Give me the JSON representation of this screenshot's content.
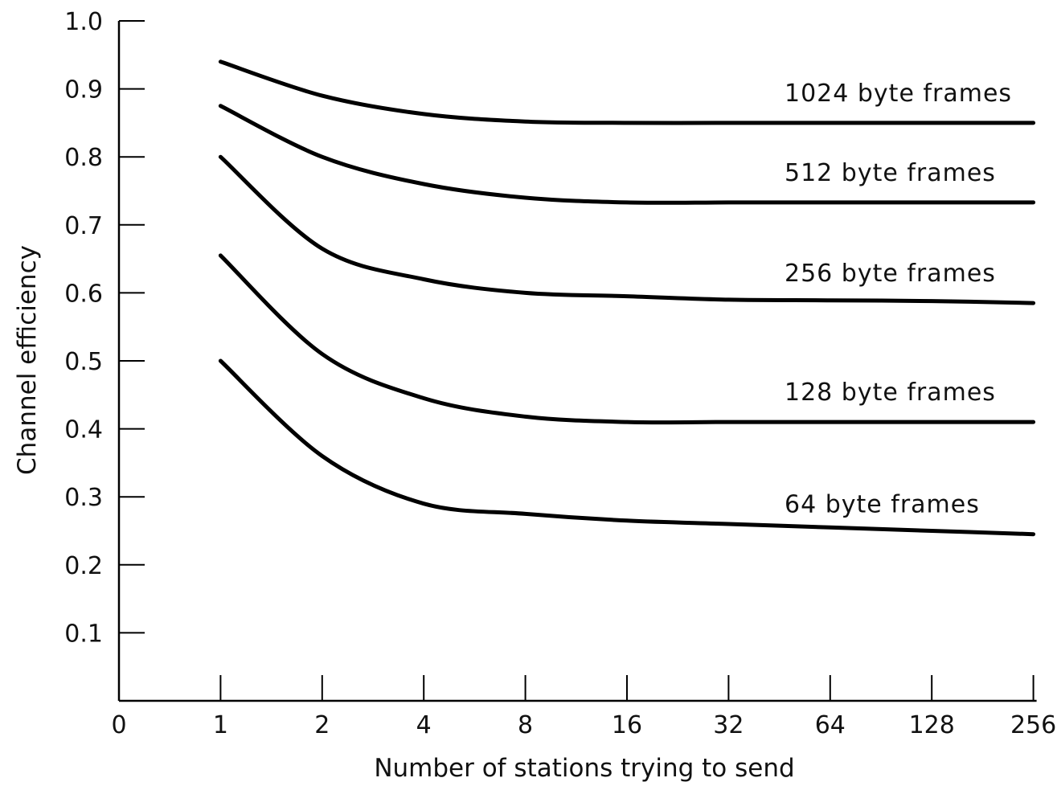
{
  "chart_data": {
    "type": "line",
    "title": "",
    "xlabel": "Number of stations trying to send",
    "ylabel": "Channel efficiency",
    "x_scale": "log2",
    "x_ticks": [
      "0",
      "1",
      "2",
      "4",
      "8",
      "16",
      "32",
      "64",
      "128",
      "256"
    ],
    "y_ticks": [
      "0.1",
      "0.2",
      "0.3",
      "0.4",
      "0.5",
      "0.6",
      "0.7",
      "0.8",
      "0.9",
      "1.0"
    ],
    "ylim": [
      0,
      1.0
    ],
    "grid": false,
    "legend": "inline labels at right end of each curve",
    "x": [
      1,
      2,
      4,
      8,
      16,
      32,
      64,
      128,
      256
    ],
    "series": [
      {
        "name": "1024 byte frames",
        "values": [
          0.94,
          0.89,
          0.863,
          0.852,
          0.85,
          0.85,
          0.85,
          0.85,
          0.85
        ]
      },
      {
        "name": "512 byte frames",
        "values": [
          0.875,
          0.8,
          0.76,
          0.74,
          0.733,
          0.733,
          0.733,
          0.733,
          0.733
        ]
      },
      {
        "name": "256 byte frames",
        "values": [
          0.8,
          0.665,
          0.62,
          0.6,
          0.595,
          0.59,
          0.589,
          0.588,
          0.585
        ]
      },
      {
        "name": "128 byte frames",
        "values": [
          0.655,
          0.51,
          0.445,
          0.418,
          0.41,
          0.41,
          0.41,
          0.41,
          0.41
        ]
      },
      {
        "name": "64 byte frames",
        "values": [
          0.5,
          0.36,
          0.29,
          0.275,
          0.265,
          0.26,
          0.255,
          0.25,
          0.245
        ]
      }
    ],
    "colors": {
      "line": "#000000",
      "text": "#111111",
      "background": "#ffffff"
    }
  }
}
